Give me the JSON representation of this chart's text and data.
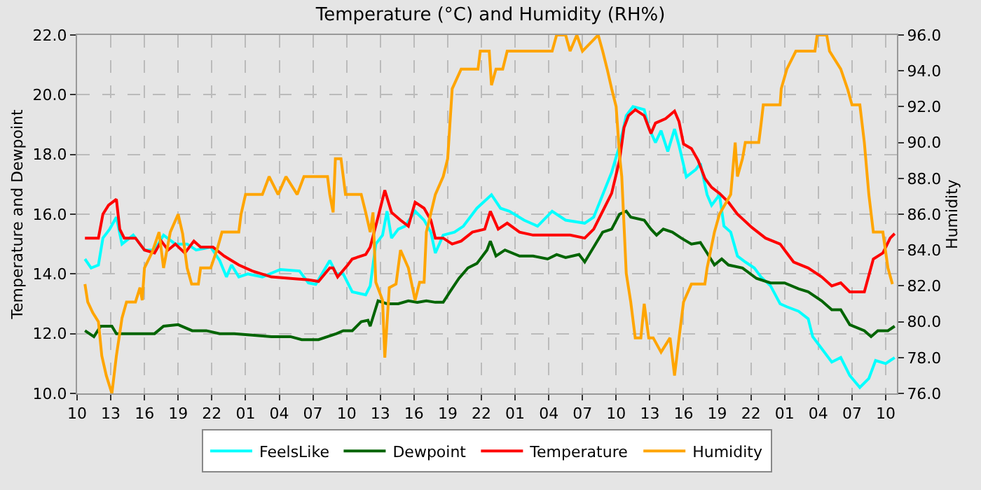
{
  "chart_data": {
    "type": "line",
    "title": "Temperature (°C) and Humidity (RH%)",
    "ylabel": "Temperature and Dewpoint",
    "y2label": "Humidity",
    "xlim": [
      "--01-01T10:00",
      "--01-04T11:00"
    ],
    "xticks": [
      {
        "value": "--01-01T10:00",
        "label": "10"
      },
      {
        "value": "--01-01T13:00",
        "label": "13"
      },
      {
        "value": "--01-01T16:00",
        "label": "16"
      },
      {
        "value": "--01-01T19:00",
        "label": "19"
      },
      {
        "value": "--01-01T22:00",
        "label": "22"
      },
      {
        "value": "--01-02T01:00",
        "label": "01"
      },
      {
        "value": "--01-02T04:00",
        "label": "04"
      },
      {
        "value": "--01-02T07:00",
        "label": "07"
      },
      {
        "value": "--01-02T10:00",
        "label": "10"
      },
      {
        "value": "--01-02T13:00",
        "label": "13"
      },
      {
        "value": "--01-02T16:00",
        "label": "16"
      },
      {
        "value": "--01-02T19:00",
        "label": "19"
      },
      {
        "value": "--01-02T22:00",
        "label": "22"
      },
      {
        "value": "--01-03T01:00",
        "label": "01"
      },
      {
        "value": "--01-03T04:00",
        "label": "04"
      },
      {
        "value": "--01-03T07:00",
        "label": "07"
      },
      {
        "value": "--01-03T10:00",
        "label": "10"
      },
      {
        "value": "--01-03T13:00",
        "label": "13"
      },
      {
        "value": "--01-03T16:00",
        "label": "16"
      },
      {
        "value": "--01-03T19:00",
        "label": "19"
      },
      {
        "value": "--01-03T22:00",
        "label": "22"
      },
      {
        "value": "--01-04T01:00",
        "label": "01"
      },
      {
        "value": "--01-04T04:00",
        "label": "04"
      },
      {
        "value": "--01-04T07:00",
        "label": "07"
      },
      {
        "value": "--01-04T10:00",
        "label": "10"
      }
    ],
    "ylim": [
      10,
      22
    ],
    "yticks": [
      {
        "value": 10,
        "label": "10.0"
      },
      {
        "value": 12,
        "label": "12.0"
      },
      {
        "value": 14,
        "label": "14.0"
      },
      {
        "value": 16,
        "label": "16.0"
      },
      {
        "value": 18,
        "label": "18.0"
      },
      {
        "value": 20,
        "label": "20.0"
      },
      {
        "value": 22,
        "label": "22.0"
      }
    ],
    "y2lim": [
      76,
      96
    ],
    "y2ticks": [
      {
        "value": 76,
        "label": "76.0"
      },
      {
        "value": 78,
        "label": "78.0"
      },
      {
        "value": 80,
        "label": "80.0"
      },
      {
        "value": 82,
        "label": "82.0"
      },
      {
        "value": 84,
        "label": "84.0"
      },
      {
        "value": 86,
        "label": "86.0"
      },
      {
        "value": 88,
        "label": "88.0"
      },
      {
        "value": 90,
        "label": "90.0"
      },
      {
        "value": 92,
        "label": "92.0"
      },
      {
        "value": 94,
        "label": "94.0"
      },
      {
        "value": 96,
        "label": "96.0"
      }
    ],
    "grid": true,
    "legend": "bottom",
    "marker": "none",
    "line_style": "solid",
    "series": [
      {
        "name": "FeelsLike",
        "color": "#00ffff",
        "x": [
          "--01-01T10:42",
          "--01-01T11:15",
          "--01-01T11:54",
          "--01-01T12:18",
          "--01-01T12:54",
          "--01-01T13:30",
          "--01-01T14:00",
          "--01-01T15:00",
          "--01-01T16:00",
          "--01-01T16:54",
          "--01-01T17:42",
          "--01-01T18:45",
          "--01-01T19:48",
          "--01-01T20:36",
          "--01-01T21:54",
          "--01-01T22:42",
          "--01-01T23:18",
          "--01-01T23:45",
          "--01-02T00:24",
          "--01-02T01:12",
          "--01-02T02:30",
          "--01-02T04:06",
          "--01-02T05:48",
          "--01-02T06:36",
          "--01-02T07:15",
          "--01-02T08:30",
          "--01-02T09:06",
          "--01-02T09:42",
          "--01-02T10:30",
          "--01-02T11:42",
          "--01-02T12:06",
          "--01-02T12:36",
          "--01-02T13:12",
          "--01-02T13:36",
          "--01-02T14:00",
          "--01-02T14:36",
          "--01-02T15:12",
          "--01-02T16:06",
          "--01-02T16:54",
          "--01-02T17:30",
          "--01-02T17:54",
          "--01-02T18:36",
          "--01-02T19:36",
          "--01-02T20:24",
          "--01-02T21:36",
          "--01-02T22:54",
          "--01-02T23:42",
          "--01-03T00:30",
          "--01-03T01:48",
          "--01-03T03:00",
          "--01-03T04:18",
          "--01-03T05:30",
          "--01-03T07:12",
          "--01-03T08:00",
          "--01-03T08:48",
          "--01-03T09:36",
          "--01-03T10:18",
          "--01-03T10:54",
          "--01-03T11:30",
          "--01-03T12:30",
          "--01-03T12:54",
          "--01-03T13:30",
          "--01-03T14:00",
          "--01-03T14:36",
          "--01-03T15:12",
          "--01-03T15:36",
          "--01-03T16:15",
          "--01-03T17:06",
          "--01-03T17:30",
          "--01-03T18:06",
          "--01-03T18:30",
          "--01-03T19:12",
          "--01-03T19:36",
          "--01-03T20:12",
          "--01-03T20:48",
          "--01-03T21:30",
          "--01-03T22:18",
          "--01-03T22:54",
          "--01-03T23:45",
          "--01-04T00:36",
          "--01-04T01:12",
          "--01-04T02:15",
          "--01-04T03:06",
          "--01-04T03:30",
          "--01-04T04:18",
          "--01-04T05:12",
          "--01-04T06:00",
          "--01-04T06:48",
          "--01-04T07:42",
          "--01-04T08:30",
          "--01-04T09:06",
          "--01-04T10:00",
          "--01-04T10:48"
        ],
        "values": [
          14.5,
          14.2,
          14.3,
          15.2,
          15.5,
          15.9,
          15.0,
          15.3,
          14.8,
          14.8,
          15.3,
          15.0,
          15.0,
          14.8,
          14.9,
          14.45,
          13.9,
          14.3,
          13.9,
          14.0,
          13.9,
          14.15,
          14.1,
          13.7,
          13.65,
          14.45,
          14.0,
          14.0,
          13.4,
          13.3,
          13.6,
          15.0,
          15.3,
          16.1,
          15.2,
          15.5,
          15.6,
          16.1,
          15.8,
          15.4,
          14.7,
          15.3,
          15.4,
          15.6,
          16.2,
          16.65,
          16.2,
          16.1,
          15.8,
          15.6,
          16.1,
          15.8,
          15.7,
          15.9,
          16.65,
          17.4,
          18.3,
          19.3,
          19.6,
          19.5,
          18.9,
          18.4,
          18.8,
          18.1,
          18.85,
          18.3,
          17.25,
          17.5,
          17.7,
          16.65,
          16.3,
          16.65,
          15.6,
          15.4,
          14.6,
          14.4,
          14.2,
          13.9,
          13.6,
          13.0,
          12.9,
          12.75,
          12.5,
          11.9,
          11.5,
          11.05,
          11.2,
          10.6,
          10.2,
          10.5,
          11.1,
          11.0,
          11.2
        ]
      },
      {
        "name": "Dewpoint",
        "color": "#006400",
        "x": [
          "--01-01T10:42",
          "--01-01T11:30",
          "--01-01T12:06",
          "--01-01T13:06",
          "--01-01T13:30",
          "--01-01T14:24",
          "--01-01T15:36",
          "--01-01T16:54",
          "--01-01T17:42",
          "--01-01T19:00",
          "--01-01T20:15",
          "--01-01T21:30",
          "--01-01T22:42",
          "--01-02T00:00",
          "--01-02T01:36",
          "--01-02T03:18",
          "--01-02T05:00",
          "--01-02T06:00",
          "--01-02T07:30",
          "--01-02T09:06",
          "--01-02T09:42",
          "--01-02T10:30",
          "--01-02T11:18",
          "--01-02T11:54",
          "--01-02T12:06",
          "--01-02T12:48",
          "--01-02T13:36",
          "--01-02T14:36",
          "--01-02T15:30",
          "--01-02T16:18",
          "--01-02T17:06",
          "--01-02T17:54",
          "--01-02T18:36",
          "--01-02T19:12",
          "--01-02T20:00",
          "--01-02T20:48",
          "--01-02T21:36",
          "--01-02T22:30",
          "--01-02T22:48",
          "--01-02T23:18",
          "--01-03T00:06",
          "--01-03T01:24",
          "--01-03T02:36",
          "--01-03T03:54",
          "--01-03T04:42",
          "--01-03T05:30",
          "--01-03T06:42",
          "--01-03T07:12",
          "--01-03T08:00",
          "--01-03T08:48",
          "--01-03T09:36",
          "--01-03T10:18",
          "--01-03T10:54",
          "--01-03T11:18",
          "--01-03T12:30",
          "--01-03T13:06",
          "--01-03T13:36",
          "--01-03T14:12",
          "--01-03T15:00",
          "--01-03T15:48",
          "--01-03T16:42",
          "--01-03T17:30",
          "--01-03T18:06",
          "--01-03T18:45",
          "--01-03T19:24",
          "--01-03T20:00",
          "--01-03T21:15",
          "--01-03T22:30",
          "--01-03T23:45",
          "--01-04T01:00",
          "--01-04T02:15",
          "--01-04T03:06",
          "--01-04T04:18",
          "--01-04T05:12",
          "--01-04T06:00",
          "--01-04T06:48",
          "--01-04T08:06",
          "--01-04T08:42",
          "--01-04T09:18",
          "--01-04T10:12",
          "--01-04T10:48"
        ],
        "values": [
          12.1,
          11.9,
          12.25,
          12.25,
          12.0,
          12.0,
          12.0,
          12.0,
          12.25,
          12.3,
          12.1,
          12.1,
          12.0,
          12.0,
          11.95,
          11.9,
          11.9,
          11.8,
          11.8,
          12.0,
          12.1,
          12.1,
          12.4,
          12.45,
          12.25,
          13.1,
          13.0,
          13.0,
          13.1,
          13.05,
          13.1,
          13.05,
          13.05,
          13.4,
          13.85,
          14.2,
          14.35,
          14.8,
          15.1,
          14.6,
          14.8,
          14.6,
          14.6,
          14.5,
          14.65,
          14.55,
          14.65,
          14.4,
          14.9,
          15.4,
          15.5,
          16.0,
          16.1,
          15.9,
          15.8,
          15.5,
          15.3,
          15.5,
          15.4,
          15.2,
          15.0,
          15.05,
          14.7,
          14.3,
          14.5,
          14.3,
          14.2,
          13.85,
          13.7,
          13.7,
          13.5,
          13.4,
          13.1,
          12.8,
          12.8,
          12.3,
          12.1,
          11.9,
          12.1,
          12.1,
          12.25
        ]
      },
      {
        "name": "Temperature",
        "color": "#ff0000",
        "x": [
          "--01-01T10:42",
          "--01-01T11:54",
          "--01-01T12:18",
          "--01-01T12:48",
          "--01-01T13:30",
          "--01-01T13:48",
          "--01-01T14:12",
          "--01-01T15:12",
          "--01-01T16:00",
          "--01-01T16:54",
          "--01-01T17:30",
          "--01-01T18:06",
          "--01-01T18:45",
          "--01-01T19:36",
          "--01-01T20:24",
          "--01-01T21:00",
          "--01-01T22:06",
          "--01-01T23:06",
          "--01-02T00:24",
          "--01-02T01:36",
          "--01-02T03:18",
          "--01-02T05:00",
          "--01-02T06:36",
          "--01-02T07:30",
          "--01-02T08:30",
          "--01-02T08:48",
          "--01-02T09:12",
          "--01-02T10:06",
          "--01-02T10:30",
          "--01-02T11:42",
          "--01-02T12:06",
          "--01-02T12:48",
          "--01-02T13:24",
          "--01-02T14:00",
          "--01-02T14:48",
          "--01-02T15:30",
          "--01-02T16:06",
          "--01-02T16:54",
          "--01-02T17:30",
          "--01-02T17:54",
          "--01-02T18:36",
          "--01-02T19:24",
          "--01-02T20:12",
          "--01-02T21:12",
          "--01-02T22:18",
          "--01-02T22:48",
          "--01-02T23:30",
          "--01-03T00:18",
          "--01-03T01:24",
          "--01-03T02:36",
          "--01-03T04:18",
          "--01-03T05:54",
          "--01-03T07:12",
          "--01-03T08:00",
          "--01-03T08:48",
          "--01-03T09:36",
          "--01-03T10:18",
          "--01-03T10:42",
          "--01-03T11:06",
          "--01-03T11:42",
          "--01-03T12:30",
          "--01-03T13:06",
          "--01-03T13:30",
          "--01-03T14:24",
          "--01-03T15:12",
          "--01-03T15:36",
          "--01-03T16:00",
          "--01-03T16:42",
          "--01-03T17:18",
          "--01-03T17:54",
          "--01-03T18:30",
          "--01-03T19:12",
          "--01-03T20:00",
          "--01-03T20:48",
          "--01-03T22:06",
          "--01-03T23:18",
          "--01-04T00:36",
          "--01-04T01:12",
          "--01-04T01:48",
          "--01-04T03:06",
          "--01-04T04:18",
          "--01-04T05:12",
          "--01-04T06:00",
          "--01-04T06:48",
          "--01-04T08:06",
          "--01-04T08:54",
          "--01-04T09:45",
          "--01-04T10:24",
          "--01-04T10:48"
        ],
        "values": [
          15.2,
          15.2,
          16.0,
          16.3,
          16.5,
          15.5,
          15.2,
          15.2,
          14.8,
          14.7,
          15.1,
          14.8,
          15.0,
          14.7,
          15.1,
          14.9,
          14.9,
          14.6,
          14.3,
          14.1,
          13.9,
          13.85,
          13.8,
          13.75,
          14.2,
          14.2,
          13.9,
          14.3,
          14.5,
          14.65,
          14.9,
          15.9,
          16.8,
          16.06,
          15.8,
          15.6,
          16.4,
          16.2,
          15.8,
          15.2,
          15.2,
          15.0,
          15.1,
          15.4,
          15.5,
          16.1,
          15.5,
          15.7,
          15.4,
          15.3,
          15.3,
          15.3,
          15.2,
          15.5,
          16.1,
          16.7,
          17.8,
          18.9,
          19.3,
          19.5,
          19.3,
          18.7,
          19.05,
          19.2,
          19.45,
          19.1,
          18.35,
          18.2,
          17.8,
          17.2,
          16.9,
          16.7,
          16.4,
          16.0,
          15.55,
          15.2,
          15.0,
          14.7,
          14.4,
          14.2,
          13.9,
          13.6,
          13.7,
          13.4,
          13.4,
          14.5,
          14.7,
          15.2,
          15.35
        ]
      },
      {
        "name": "Humidity",
        "color": "#ffa500",
        "axis": "y2",
        "x": [
          "--01-01T10:42",
          "--01-01T10:57",
          "--01-01T11:24",
          "--01-01T11:54",
          "--01-01T12:12",
          "--01-01T12:36",
          "--01-01T13:06",
          "--01-01T13:30",
          "--01-01T14:00",
          "--01-01T14:24",
          "--01-01T15:12",
          "--01-01T15:36",
          "--01-01T15:48",
          "--01-01T16:00",
          "--01-01T16:42",
          "--01-01T17:18",
          "--01-01T17:42",
          "--01-01T18:18",
          "--01-01T19:00",
          "--01-01T19:24",
          "--01-01T19:48",
          "--01-01T20:12",
          "--01-01T20:48",
          "--01-01T21:00",
          "--01-01T21:54",
          "--01-01T22:30",
          "--01-01T22:54",
          "--01-02T00:24",
          "--01-02T00:36",
          "--01-02T01:00",
          "--01-02T02:30",
          "--01-02T03:06",
          "--01-02T03:54",
          "--01-02T04:36",
          "--01-02T05:36",
          "--01-02T06:12",
          "--01-02T08:18",
          "--01-02T08:30",
          "--01-02T08:48",
          "--01-02T09:00",
          "--01-02T09:30",
          "--01-02T09:54",
          "--01-02T11:18",
          "--01-02T11:42",
          "--01-02T12:06",
          "--01-02T12:21",
          "--01-02T12:36",
          "--01-02T13:12",
          "--01-02T13:24",
          "--01-02T13:48",
          "--01-02T14:24",
          "--01-02T14:48",
          "--01-02T15:30",
          "--01-02T16:06",
          "--01-02T16:30",
          "--01-02T16:54",
          "--01-02T17:06",
          "--01-02T17:54",
          "--01-02T18:36",
          "--01-02T19:00",
          "--01-02T19:24",
          "--01-02T20:12",
          "--01-02T21:42",
          "--01-02T21:54",
          "--01-02T22:42",
          "--01-02T22:54",
          "--01-02T23:18",
          "--01-02T23:54",
          "--01-03T00:18",
          "--01-03T04:18",
          "--01-03T04:42",
          "--01-03T05:30",
          "--01-03T05:54",
          "--01-03T06:30",
          "--01-03T07:00",
          "--01-03T08:24",
          "--01-03T08:48",
          "--01-03T09:12",
          "--01-03T09:36",
          "--01-03T10:00",
          "--01-03T10:18",
          "--01-03T10:30",
          "--01-03T10:54",
          "--01-03T11:18",
          "--01-03T11:42",
          "--01-03T12:12",
          "--01-03T12:30",
          "--01-03T12:54",
          "--01-03T13:18",
          "--01-03T14:00",
          "--01-03T14:48",
          "--01-03T15:12",
          "--01-03T15:36",
          "--01-03T16:00",
          "--01-03T16:42",
          "--01-03T17:54",
          "--01-03T18:06",
          "--01-03T18:45",
          "--01-03T19:12",
          "--01-03T20:12",
          "--01-03T20:36",
          "--01-03T20:48",
          "--01-03T21:15",
          "--01-03T21:30",
          "--01-03T22:42",
          "--01-03T22:54",
          "--01-03T23:06",
          "--01-04T00:36",
          "--01-04T00:42",
          "--01-04T01:12",
          "--01-04T02:00",
          "--01-04T03:42",
          "--01-04T03:54",
          "--01-04T04:45",
          "--01-04T05:00",
          "--01-04T06:00",
          "--01-04T06:36",
          "--01-04T07:00",
          "--01-04T07:42",
          "--01-04T08:06",
          "--01-04T08:30",
          "--01-04T08:54",
          "--01-04T09:45",
          "--01-04T10:12",
          "--01-04T10:36"
        ],
        "values": [
          82.1,
          81.1,
          80.5,
          80.0,
          78.1,
          77.0,
          76.0,
          78.1,
          80.2,
          81.1,
          81.1,
          81.9,
          81.2,
          83.0,
          83.9,
          85.0,
          83.0,
          85.0,
          86.0,
          84.9,
          83.0,
          82.1,
          82.1,
          83.0,
          83.0,
          84.1,
          85.0,
          85.0,
          86.0,
          87.1,
          87.1,
          88.1,
          87.1,
          88.1,
          87.1,
          88.1,
          88.1,
          87.1,
          86.1,
          89.1,
          89.1,
          87.1,
          87.1,
          86.1,
          85.0,
          86.1,
          82.2,
          81.2,
          78.0,
          81.9,
          82.1,
          84.0,
          83.0,
          81.2,
          82.2,
          82.2,
          85.0,
          87.1,
          88.1,
          89.1,
          93.0,
          94.1,
          94.1,
          95.1,
          95.1,
          93.2,
          94.1,
          94.1,
          95.1,
          95.1,
          96.0,
          96.0,
          95.1,
          96.0,
          95.1,
          96.0,
          95.1,
          94.1,
          93.0,
          92.0,
          89.3,
          88.1,
          82.7,
          81.1,
          79.1,
          79.1,
          81.0,
          79.1,
          79.1,
          78.3,
          79.1,
          77.0,
          79.1,
          81.1,
          82.1,
          82.1,
          83.0,
          85.0,
          86.0,
          87.1,
          90.0,
          88.1,
          89.1,
          90.0,
          90.0,
          91.0,
          92.1,
          92.1,
          93.0,
          94.1,
          95.1,
          95.1,
          96.0,
          96.0,
          95.1,
          94.1,
          93.0,
          92.1,
          92.1,
          90.0,
          87.1,
          85.0,
          85.0,
          83.0,
          82.1
        ]
      }
    ]
  }
}
